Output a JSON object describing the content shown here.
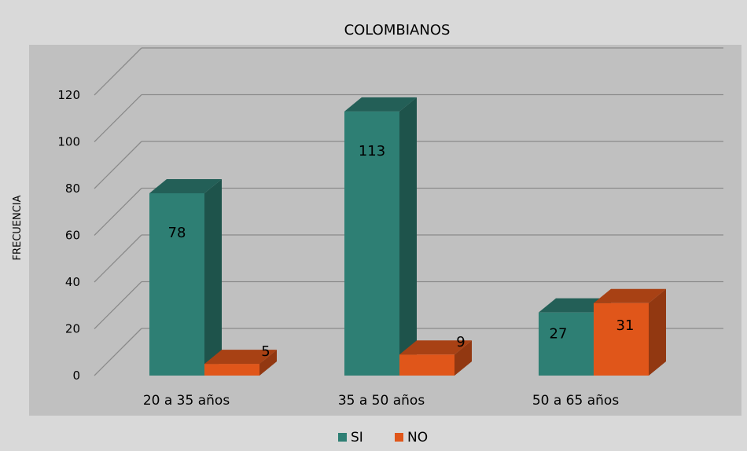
{
  "chart_data": {
    "type": "bar",
    "title": "COLOMBIANOS",
    "xlabel": "",
    "ylabel": "FRECUENCIA",
    "categories": [
      "20 a 35 años",
      "35 a 50 años",
      "50 a 65 años"
    ],
    "series": [
      {
        "name": "SI",
        "values": [
          78,
          113,
          27
        ],
        "color": "#2e7f74"
      },
      {
        "name": "NO",
        "values": [
          5,
          9,
          31
        ],
        "color": "#e0561a"
      }
    ],
    "ylim": [
      0,
      120
    ],
    "yticks": [
      0,
      20,
      40,
      60,
      80,
      100,
      120
    ],
    "grid": true,
    "legend": "bottom",
    "style": "3d-column"
  }
}
